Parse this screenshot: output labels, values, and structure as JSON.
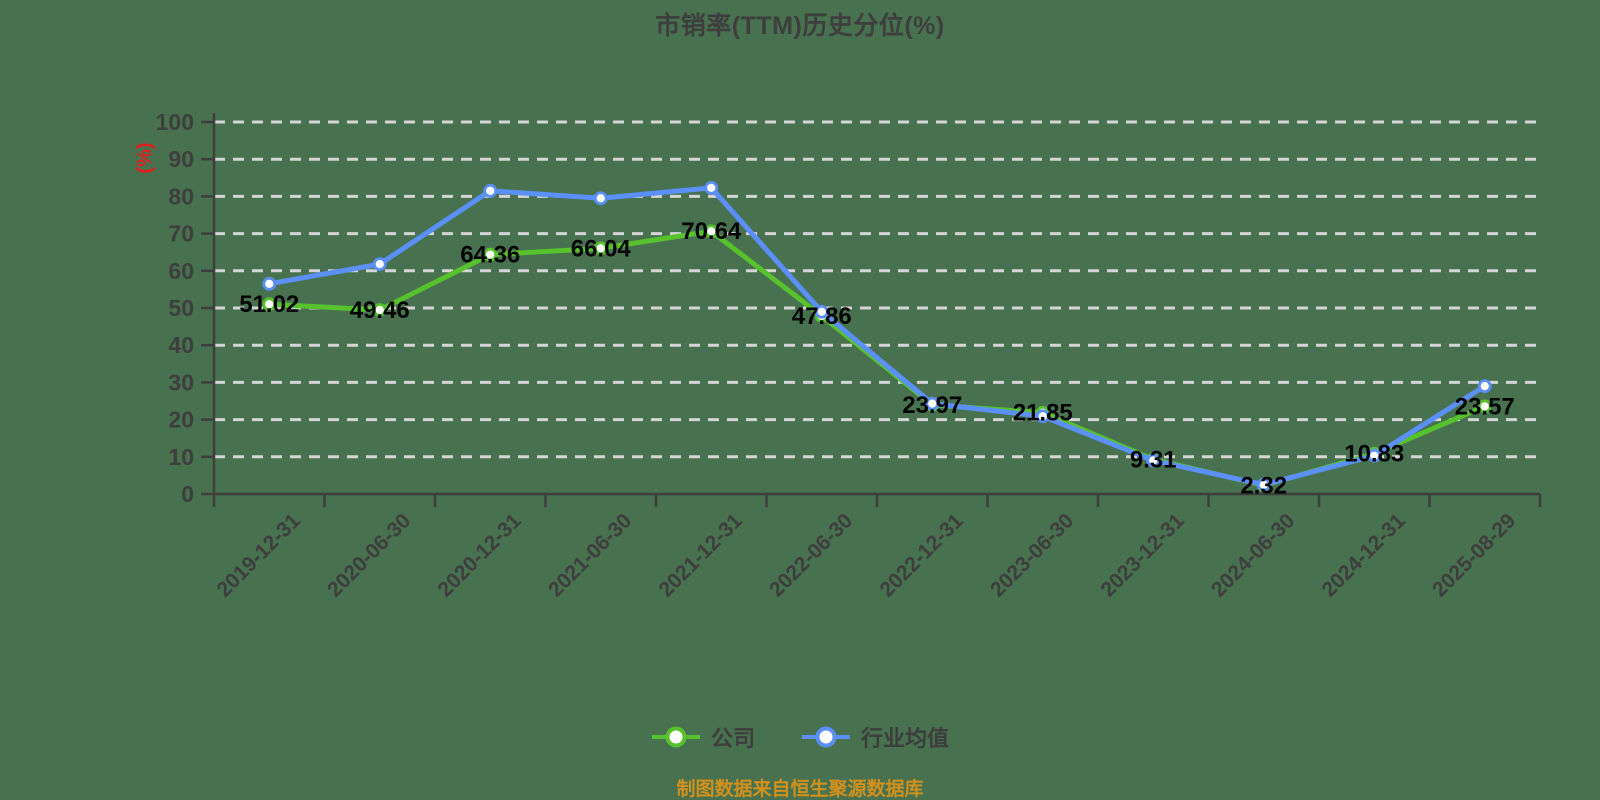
{
  "page": {
    "background_color": "#47714f"
  },
  "chart_data": {
    "type": "line",
    "title": "市销率(TTM)历史分位(%)",
    "ylabel": "(%)",
    "ylabel_color": "#e02020",
    "ylim": [
      0,
      100
    ],
    "y_ticks": [
      0,
      10,
      20,
      30,
      40,
      50,
      60,
      70,
      80,
      90,
      100
    ],
    "grid": "horizontal-dashed",
    "legend_position": "bottom",
    "categories": [
      "2019-12-31",
      "2020-06-30",
      "2020-12-31",
      "2021-06-30",
      "2021-12-31",
      "2022-06-30",
      "2022-12-31",
      "2023-06-30",
      "2023-12-31",
      "2024-06-30",
      "2024-12-31",
      "2025-08-29"
    ],
    "series": [
      {
        "name": "公司",
        "color": "#57c22d",
        "values": [
          51.02,
          49.46,
          64.36,
          66.04,
          70.64,
          47.86,
          23.97,
          21.85,
          9.31,
          2.32,
          10.83,
          23.57
        ],
        "point_labels": [
          "51.02",
          "49.46",
          "64.36",
          "66.04",
          "70.64",
          "47.86",
          "23.97",
          "21.85",
          "9.31",
          "2.32",
          "10.83",
          "23.57"
        ]
      },
      {
        "name": "行业均值",
        "color": "#5b8ff9",
        "values": [
          56.5,
          61.8,
          81.5,
          79.5,
          82.3,
          49.0,
          24.3,
          20.9,
          9.0,
          2.5,
          10.3,
          29.0
        ],
        "point_labels": []
      }
    ]
  },
  "legend": {
    "items": [
      {
        "label": "公司",
        "color": "#57c22d"
      },
      {
        "label": "行业均值",
        "color": "#5b8ff9"
      }
    ]
  },
  "footer": {
    "text": "制图数据来自恒生聚源数据库",
    "color": "#d2901c"
  }
}
